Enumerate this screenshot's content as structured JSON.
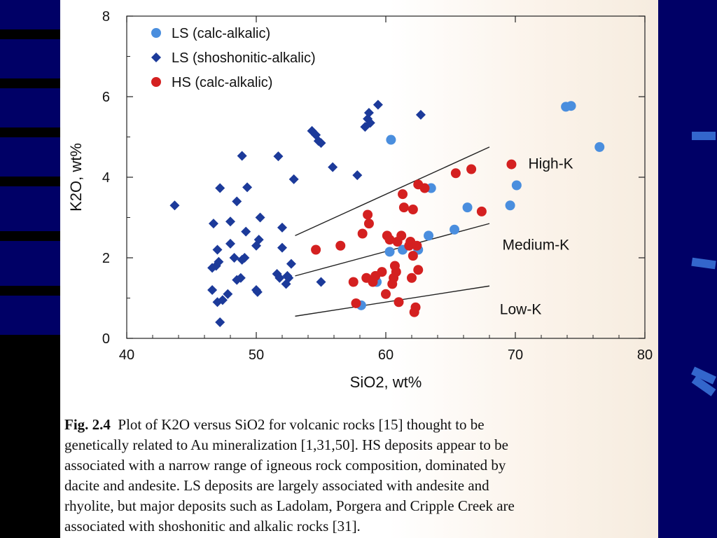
{
  "slide": {
    "background": "#000066",
    "stripe_color": "#000000",
    "mark_color": "#3366cc"
  },
  "chart_data": {
    "type": "scatter",
    "title": "",
    "xlabel": "SiO2, wt%",
    "ylabel": "K2O, wt%",
    "xlim": [
      40,
      80
    ],
    "ylim": [
      0,
      8
    ],
    "xticks": [
      "40",
      "50",
      "60",
      "70",
      "80"
    ],
    "yticks": [
      "0",
      "2",
      "4",
      "6",
      "8"
    ],
    "grid": false,
    "legend_position": "top-left",
    "series": [
      {
        "name": "LS (calc-alkalic)",
        "marker": "circle",
        "color": "#4a8ede",
        "points": [
          [
            60.4,
            4.93
          ],
          [
            63.5,
            3.73
          ],
          [
            66.3,
            3.25
          ],
          [
            65.3,
            2.7
          ],
          [
            63.3,
            2.55
          ],
          [
            62.5,
            2.2
          ],
          [
            61.3,
            2.2
          ],
          [
            60.3,
            2.15
          ],
          [
            59.3,
            1.4
          ],
          [
            58.1,
            0.82
          ],
          [
            69.6,
            3.3
          ],
          [
            70.1,
            3.8
          ],
          [
            73.9,
            5.75
          ],
          [
            74.3,
            5.77
          ],
          [
            76.5,
            4.75
          ]
        ]
      },
      {
        "name": "LS (shoshonitic-alkalic)",
        "marker": "diamond",
        "color": "#1c3a9a",
        "points": [
          [
            43.7,
            3.3
          ],
          [
            46.7,
            2.85
          ],
          [
            47.0,
            2.2
          ],
          [
            46.9,
            1.8
          ],
          [
            47.1,
            1.9
          ],
          [
            46.6,
            1.75
          ],
          [
            46.6,
            1.2
          ],
          [
            47.0,
            0.9
          ],
          [
            47.4,
            0.95
          ],
          [
            47.8,
            1.1
          ],
          [
            47.2,
            0.4
          ],
          [
            47.2,
            3.73
          ],
          [
            48.0,
            2.9
          ],
          [
            48.0,
            2.35
          ],
          [
            48.3,
            2.0
          ],
          [
            48.5,
            1.45
          ],
          [
            48.5,
            3.4
          ],
          [
            48.9,
            1.95
          ],
          [
            48.8,
            1.5
          ],
          [
            49.1,
            2.0
          ],
          [
            49.2,
            2.65
          ],
          [
            49.3,
            3.75
          ],
          [
            48.9,
            4.53
          ],
          [
            50.0,
            2.3
          ],
          [
            50.2,
            2.45
          ],
          [
            50.3,
            3.0
          ],
          [
            50.0,
            1.2
          ],
          [
            50.1,
            1.15
          ],
          [
            51.7,
            4.52
          ],
          [
            51.6,
            1.6
          ],
          [
            51.8,
            1.5
          ],
          [
            52.0,
            2.25
          ],
          [
            52.0,
            2.75
          ],
          [
            52.3,
            1.35
          ],
          [
            52.5,
            1.5
          ],
          [
            52.7,
            1.85
          ],
          [
            52.4,
            1.55
          ],
          [
            52.9,
            3.95
          ],
          [
            54.3,
            5.15
          ],
          [
            54.6,
            5.05
          ],
          [
            54.8,
            4.9
          ],
          [
            55.0,
            4.85
          ],
          [
            55.0,
            1.4
          ],
          [
            55.9,
            4.25
          ],
          [
            57.8,
            4.05
          ],
          [
            58.4,
            5.25
          ],
          [
            58.6,
            5.45
          ],
          [
            58.8,
            5.35
          ],
          [
            58.7,
            5.6
          ],
          [
            59.4,
            5.8
          ],
          [
            62.7,
            5.55
          ]
        ]
      },
      {
        "name": "HS (calc-alkalic)",
        "marker": "circle",
        "color": "#d42020",
        "points": [
          [
            54.6,
            2.2
          ],
          [
            56.5,
            2.3
          ],
          [
            57.5,
            1.4
          ],
          [
            57.7,
            0.87
          ],
          [
            58.2,
            2.6
          ],
          [
            58.5,
            1.5
          ],
          [
            58.6,
            3.07
          ],
          [
            58.7,
            2.85
          ],
          [
            59.0,
            1.4
          ],
          [
            59.2,
            1.55
          ],
          [
            59.7,
            1.65
          ],
          [
            60.0,
            1.1
          ],
          [
            60.1,
            2.55
          ],
          [
            60.3,
            2.45
          ],
          [
            60.6,
            1.5
          ],
          [
            60.5,
            1.35
          ],
          [
            60.7,
            1.8
          ],
          [
            60.8,
            1.65
          ],
          [
            60.9,
            2.4
          ],
          [
            61.0,
            0.9
          ],
          [
            61.2,
            2.55
          ],
          [
            61.3,
            3.58
          ],
          [
            61.4,
            3.25
          ],
          [
            61.8,
            2.3
          ],
          [
            61.9,
            2.4
          ],
          [
            62.0,
            1.5
          ],
          [
            62.1,
            2.05
          ],
          [
            62.1,
            3.2
          ],
          [
            62.2,
            0.65
          ],
          [
            62.3,
            0.77
          ],
          [
            62.4,
            2.3
          ],
          [
            62.5,
            1.7
          ],
          [
            62.5,
            3.82
          ],
          [
            63.0,
            3.73
          ],
          [
            65.4,
            4.1
          ],
          [
            66.6,
            4.2
          ],
          [
            67.4,
            3.15
          ],
          [
            69.7,
            4.32
          ]
        ]
      }
    ],
    "boundary_lines": [
      {
        "label": "High-K",
        "from": [
          53.0,
          2.55
        ],
        "to": [
          68.0,
          4.75
        ]
      },
      {
        "label": "Medium-K",
        "from": [
          53.0,
          1.55
        ],
        "to": [
          68.0,
          2.85
        ]
      },
      {
        "label": "Low-K",
        "from": [
          53.0,
          0.55
        ],
        "to": [
          68.0,
          1.3
        ]
      }
    ],
    "region_labels": [
      {
        "text": "High-K",
        "at": [
          71.0,
          4.22
        ]
      },
      {
        "text": "Medium-K",
        "at": [
          69.0,
          2.2
        ]
      },
      {
        "text": "Low-K",
        "at": [
          68.8,
          0.6
        ]
      }
    ]
  },
  "caption": {
    "label": "Fig. 2.4",
    "lines": [
      "Plot of K2O versus SiO2 for volcanic rocks [15] thought to be",
      "genetically related to Au mineralization [1,31,50].  HS deposits appear to be",
      "associated with a narrow range of igneous rock composition, dominated by",
      "dacite and andesite.  LS deposits are largely associated with andesite and",
      "rhyolite, but major deposits such as Ladolam, Porgera and Cripple Creek are",
      "associated with shoshonitic and alkalic rocks [31]."
    ]
  }
}
